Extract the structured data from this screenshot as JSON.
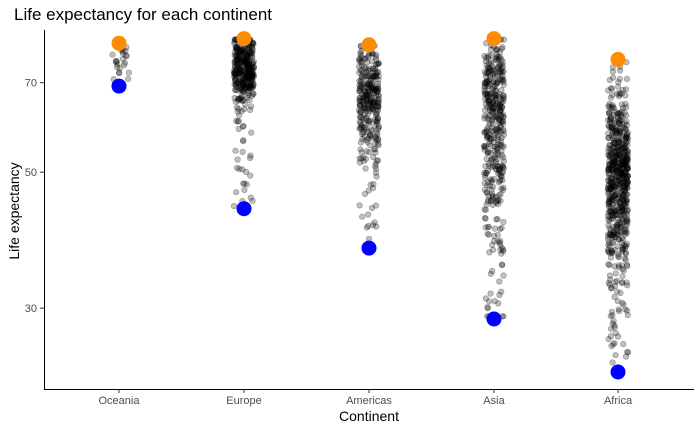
{
  "chart_data": {
    "type": "scatter",
    "title": "Life expectancy for each continent",
    "xlabel": "Continent",
    "ylabel": "Life expectancy",
    "y_scale": "log",
    "categories": [
      "Oceania",
      "Europe",
      "Americas",
      "Asia",
      "Africa"
    ],
    "y_ticks": [
      30,
      50,
      70
    ],
    "ylim": [
      23.6,
      85
    ],
    "jitter_points": {
      "color": "#000000",
      "opacity": 0.25,
      "approx_count": [
        24,
        360,
        300,
        396,
        624
      ],
      "range": [
        [
          69.1,
          81.2
        ],
        [
          43.6,
          82.6
        ],
        [
          37.6,
          80.7
        ],
        [
          28.8,
          82.6
        ],
        [
          23.6,
          76.4
        ]
      ],
      "central_band": [
        [
          72,
          80
        ],
        [
          68,
          79
        ],
        [
          57,
          75
        ],
        [
          46,
          75
        ],
        [
          39,
          59
        ]
      ]
    },
    "series": [
      {
        "name": "max",
        "color": "#FF8C00",
        "values": [
          81.2,
          82.6,
          80.7,
          82.6,
          76.4
        ]
      },
      {
        "name": "min",
        "color": "#0000FF",
        "values": [
          69.1,
          43.6,
          37.6,
          28.8,
          23.6
        ]
      }
    ],
    "grid": false,
    "legend": "none"
  }
}
